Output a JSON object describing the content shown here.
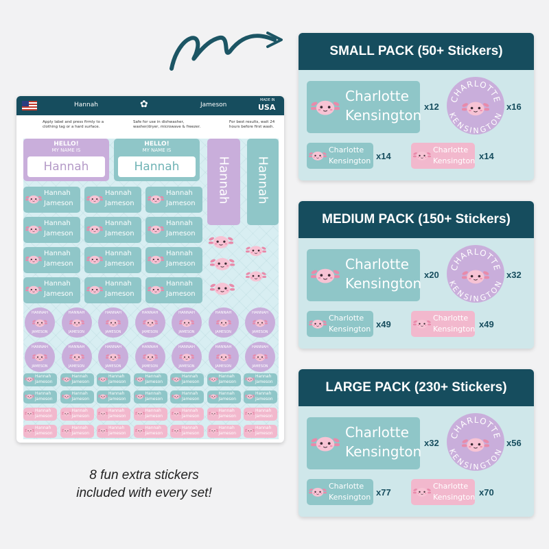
{
  "sheet": {
    "header_left": "Hannah",
    "header_right": "Jameson",
    "made_in": "MADE IN",
    "country": "USA",
    "instructions": [
      "Apply label and press firmly to a clothing tag or a hard surface.",
      "Safe for use in dishwasher, washer/dryer, microwave & freezer.",
      "For best results, wait 24 hours before first wash."
    ],
    "hello": "HELLO!",
    "my_name_is": "MY NAME IS",
    "first_name": "Hannah",
    "last_name": "Jameson",
    "circle_top": "HANNAH",
    "circle_bottom": "JAMESON"
  },
  "caption": {
    "line1": "8 fun extra stickers",
    "line2": "included with every set!"
  },
  "name_first": "Charlotte",
  "name_last": "Kensington",
  "circle_top": "CHARLOTTE",
  "circle_bottom": "KENSINGTON",
  "packs": [
    {
      "title": "SMALL PACK (50+ Stickers)",
      "counts": [
        "x12",
        "x16",
        "x14",
        "x14"
      ]
    },
    {
      "title": "MEDIUM PACK (150+ Stickers)",
      "counts": [
        "x20",
        "x32",
        "x49",
        "x49"
      ]
    },
    {
      "title": "LARGE PACK (230+ Stickers)",
      "counts": [
        "x32",
        "x56",
        "x77",
        "x70"
      ]
    }
  ],
  "colors": {
    "navy": "#164d5e",
    "teal": "#8fc6c8",
    "pink": "#f2b8cd",
    "lavender": "#c9aedb",
    "panel": "#cfe7ea"
  }
}
